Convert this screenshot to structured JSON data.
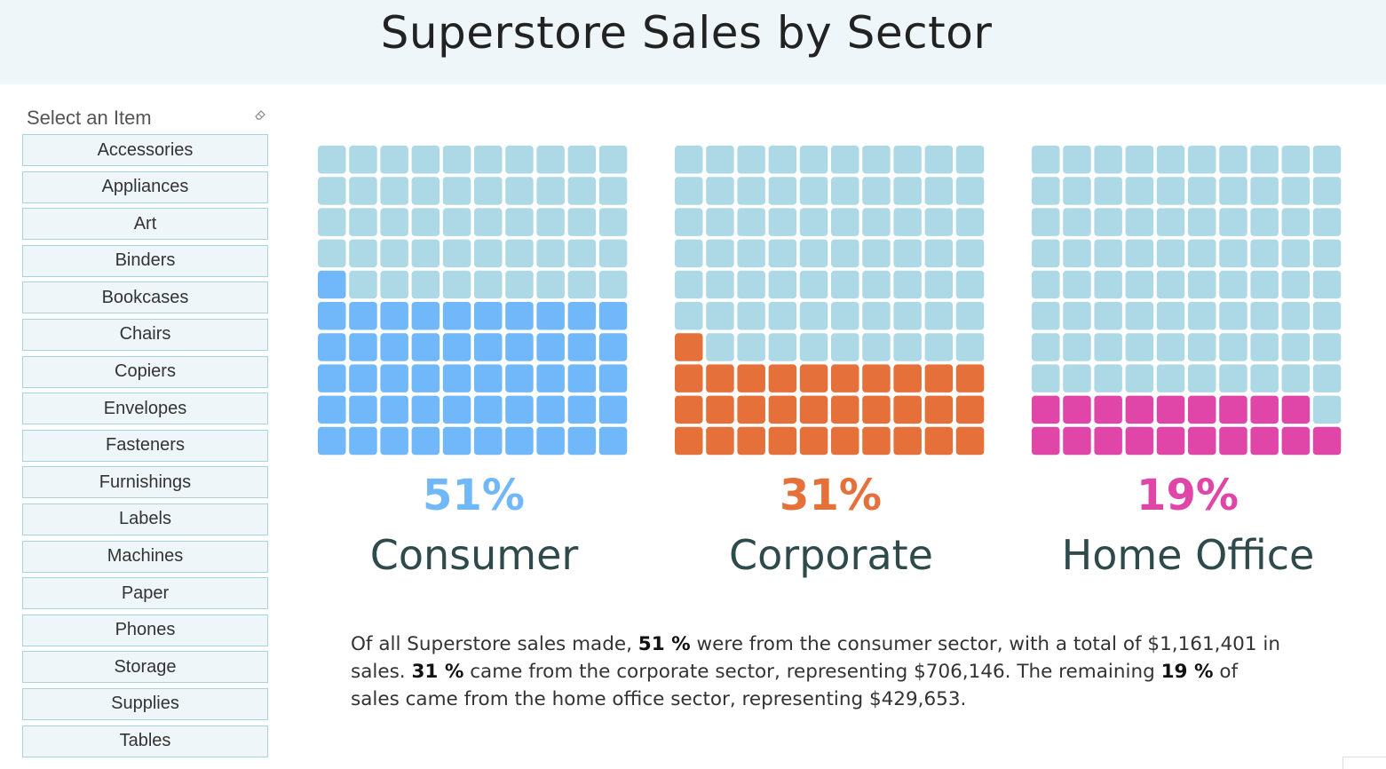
{
  "title": "Superstore Sales by Sector",
  "filter": {
    "title": "Select an Item",
    "items": [
      "Accessories",
      "Appliances",
      "Art",
      "Binders",
      "Bookcases",
      "Chairs",
      "Copiers",
      "Envelopes",
      "Fasteners",
      "Furnishings",
      "Labels",
      "Machines",
      "Paper",
      "Phones",
      "Storage",
      "Supplies",
      "Tables"
    ]
  },
  "colors": {
    "empty": "#add8e6",
    "consumer": "#71b8fa",
    "corporate": "#e6703a",
    "home_office": "#e045a8"
  },
  "chart_data": [
    {
      "type": "waffle",
      "category": "Consumer",
      "percent": 51,
      "label": "51%",
      "grid": [
        10,
        10
      ],
      "color": "#71b8fa"
    },
    {
      "type": "waffle",
      "category": "Corporate",
      "percent": 31,
      "label": "31%",
      "grid": [
        10,
        10
      ],
      "color": "#e6703a"
    },
    {
      "type": "waffle",
      "category": "Home Office",
      "percent": 19,
      "label": "19%",
      "grid": [
        10,
        10
      ],
      "color": "#e045a8"
    }
  ],
  "summary": {
    "p1": "Of all Superstore sales made, ",
    "b1": "51 %",
    "p2": " were from the consumer sector, with a total of $1,161,401 in sales. ",
    "b2": "31 %",
    "p3": " came from the corporate sector, representing $706,146.  The remaining ",
    "b3": "19 %",
    "p4": " of sales came from the home office sector, representing $429,653."
  }
}
